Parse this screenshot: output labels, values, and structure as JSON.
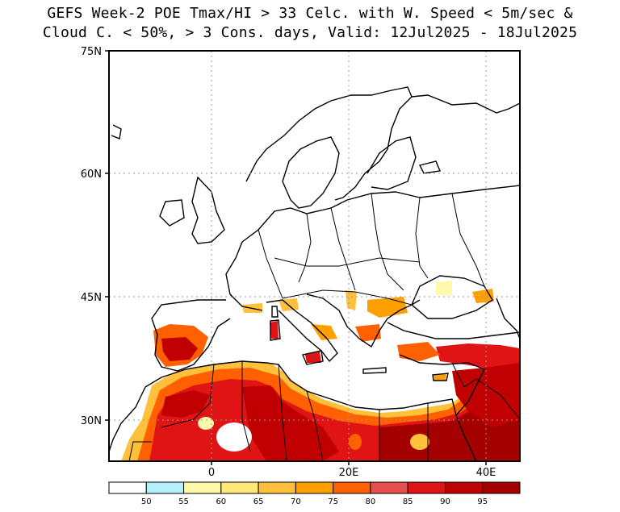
{
  "title": {
    "line1": "GEFS Week-2 POE Tmax/HI > 33 Celc. with W. Speed < 5m/sec &",
    "line2": "Cloud C. < 50%, > 3 Cons. days, Valid: 12Jul2025 - 18Jul2025"
  },
  "axes": {
    "lat_labels": [
      "75N",
      "60N",
      "45N",
      "30N"
    ],
    "lon_labels": [
      "0",
      "20E",
      "40E"
    ]
  },
  "colorbar": {
    "labels": [
      "50",
      "55",
      "60",
      "65",
      "70",
      "75",
      "80",
      "85",
      "90",
      "95"
    ],
    "colors": [
      "#ffffff",
      "#b4f0fa",
      "#fffaaa",
      "#ffe878",
      "#ffc03c",
      "#ffa000",
      "#ff6000",
      "#e85050",
      "#e01414",
      "#c00000",
      "#a50000"
    ]
  }
}
